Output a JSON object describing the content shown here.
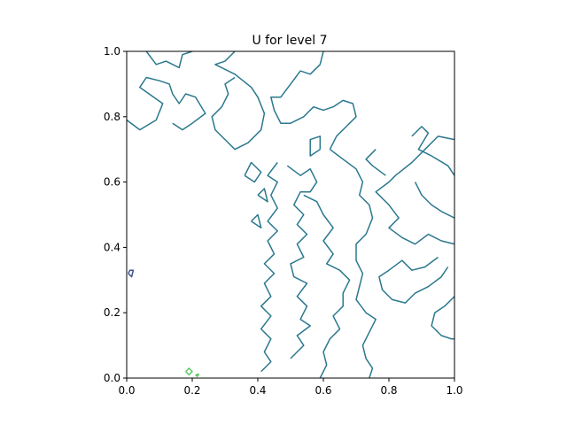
{
  "chart_data": {
    "type": "contour",
    "title": "U for level 7",
    "xlabel": "",
    "ylabel": "",
    "xlim": [
      0.0,
      1.0
    ],
    "ylim": [
      0.0,
      1.0
    ],
    "x_ticks": [
      "0.0",
      "0.2",
      "0.4",
      "0.6",
      "0.8",
      "1.0"
    ],
    "y_ticks": [
      "0.0",
      "0.2",
      "0.4",
      "0.6",
      "0.8",
      "1.0"
    ],
    "grid": false,
    "legend": "none",
    "colors": {
      "main_contour": "#2a788e",
      "low_contour": "#3b528b",
      "high_contour": "#5ec962",
      "axes": "#000000",
      "background": "#ffffff"
    },
    "contours": [
      {
        "level": "main",
        "color": "#2a788e",
        "paths": [
          [
            [
              0.06,
              1.0
            ],
            [
              0.09,
              0.96
            ],
            [
              0.12,
              0.97
            ],
            [
              0.16,
              0.95
            ],
            [
              0.17,
              0.99
            ],
            [
              0.2,
              1.0
            ]
          ],
          [
            [
              0.0,
              0.79
            ],
            [
              0.04,
              0.76
            ],
            [
              0.09,
              0.79
            ],
            [
              0.11,
              0.84
            ],
            [
              0.04,
              0.89
            ],
            [
              0.06,
              0.92
            ],
            [
              0.1,
              0.91
            ],
            [
              0.13,
              0.9
            ],
            [
              0.14,
              0.87
            ],
            [
              0.16,
              0.84
            ],
            [
              0.18,
              0.87
            ],
            [
              0.21,
              0.86
            ],
            [
              0.24,
              0.81
            ],
            [
              0.2,
              0.78
            ],
            [
              0.17,
              0.76
            ],
            [
              0.14,
              0.78
            ]
          ],
          [
            [
              0.33,
              1.0
            ],
            [
              0.3,
              0.97
            ],
            [
              0.27,
              0.96
            ],
            [
              0.33,
              0.93
            ],
            [
              0.38,
              0.89
            ],
            [
              0.4,
              0.86
            ],
            [
              0.42,
              0.81
            ],
            [
              0.41,
              0.76
            ],
            [
              0.37,
              0.72
            ],
            [
              0.33,
              0.7
            ],
            [
              0.3,
              0.73
            ],
            [
              0.27,
              0.76
            ],
            [
              0.26,
              0.8
            ],
            [
              0.29,
              0.83
            ],
            [
              0.31,
              0.87
            ],
            [
              0.3,
              0.9
            ],
            [
              0.33,
              0.92
            ]
          ],
          [
            [
              0.6,
              1.0
            ],
            [
              0.59,
              0.96
            ],
            [
              0.56,
              0.93
            ],
            [
              0.53,
              0.94
            ],
            [
              0.5,
              0.9
            ],
            [
              0.47,
              0.86
            ],
            [
              0.44,
              0.86
            ],
            [
              0.45,
              0.82
            ],
            [
              0.47,
              0.78
            ],
            [
              0.5,
              0.78
            ],
            [
              0.54,
              0.8
            ],
            [
              0.57,
              0.83
            ],
            [
              0.6,
              0.82
            ],
            [
              0.63,
              0.83
            ],
            [
              0.66,
              0.85
            ],
            [
              0.69,
              0.84
            ],
            [
              0.7,
              0.8
            ],
            [
              0.67,
              0.77
            ],
            [
              0.64,
              0.74
            ],
            [
              0.62,
              0.7
            ]
          ],
          [
            [
              0.62,
              0.7
            ],
            [
              0.66,
              0.67
            ],
            [
              0.7,
              0.64
            ],
            [
              0.72,
              0.6
            ],
            [
              0.71,
              0.56
            ],
            [
              0.74,
              0.53
            ],
            [
              0.75,
              0.49
            ],
            [
              0.73,
              0.44
            ],
            [
              0.7,
              0.41
            ],
            [
              0.7,
              0.36
            ],
            [
              0.72,
              0.32
            ],
            [
              0.71,
              0.28
            ],
            [
              0.7,
              0.24
            ],
            [
              0.73,
              0.2
            ],
            [
              0.76,
              0.18
            ],
            [
              0.74,
              0.14
            ],
            [
              0.72,
              0.1
            ],
            [
              0.73,
              0.06
            ],
            [
              0.75,
              0.03
            ],
            [
              0.74,
              0.0
            ]
          ],
          [
            [
              0.54,
              0.56
            ],
            [
              0.58,
              0.54
            ],
            [
              0.6,
              0.5
            ],
            [
              0.63,
              0.46
            ],
            [
              0.6,
              0.42
            ],
            [
              0.63,
              0.38
            ],
            [
              0.61,
              0.35
            ],
            [
              0.65,
              0.33
            ],
            [
              0.68,
              0.3
            ],
            [
              0.66,
              0.26
            ],
            [
              0.66,
              0.22
            ],
            [
              0.63,
              0.19
            ],
            [
              0.65,
              0.15
            ],
            [
              0.62,
              0.12
            ],
            [
              0.6,
              0.08
            ],
            [
              0.61,
              0.04
            ],
            [
              0.59,
              0.0
            ]
          ],
          [
            [
              0.49,
              0.65
            ],
            [
              0.53,
              0.62
            ],
            [
              0.56,
              0.64
            ],
            [
              0.58,
              0.6
            ],
            [
              0.56,
              0.57
            ],
            [
              0.53,
              0.57
            ],
            [
              0.51,
              0.53
            ],
            [
              0.54,
              0.5
            ],
            [
              0.52,
              0.47
            ],
            [
              0.55,
              0.44
            ],
            [
              0.52,
              0.41
            ],
            [
              0.54,
              0.37
            ],
            [
              0.5,
              0.35
            ],
            [
              0.51,
              0.31
            ],
            [
              0.55,
              0.29
            ],
            [
              0.52,
              0.25
            ],
            [
              0.55,
              0.22
            ],
            [
              0.53,
              0.18
            ],
            [
              0.56,
              0.16
            ],
            [
              0.52,
              0.13
            ],
            [
              0.54,
              0.1
            ],
            [
              0.5,
              0.06
            ]
          ],
          [
            [
              0.46,
              0.66
            ],
            [
              0.43,
              0.62
            ],
            [
              0.46,
              0.6
            ],
            [
              0.44,
              0.56
            ],
            [
              0.46,
              0.52
            ],
            [
              0.43,
              0.48
            ],
            [
              0.46,
              0.45
            ],
            [
              0.43,
              0.42
            ],
            [
              0.45,
              0.38
            ],
            [
              0.42,
              0.35
            ],
            [
              0.45,
              0.32
            ],
            [
              0.42,
              0.29
            ],
            [
              0.44,
              0.25
            ],
            [
              0.41,
              0.22
            ],
            [
              0.44,
              0.19
            ],
            [
              0.41,
              0.15
            ],
            [
              0.44,
              0.12
            ],
            [
              0.42,
              0.08
            ],
            [
              0.44,
              0.05
            ],
            [
              0.41,
              0.02
            ]
          ],
          [
            [
              1.0,
              0.73
            ],
            [
              0.95,
              0.74
            ],
            [
              0.91,
              0.7
            ],
            [
              0.87,
              0.66
            ],
            [
              0.82,
              0.62
            ],
            [
              0.8,
              0.6
            ],
            [
              0.76,
              0.57
            ],
            [
              0.8,
              0.53
            ],
            [
              0.83,
              0.49
            ],
            [
              0.8,
              0.46
            ],
            [
              0.84,
              0.43
            ],
            [
              0.88,
              0.41
            ],
            [
              0.92,
              0.44
            ],
            [
              0.96,
              0.42
            ],
            [
              1.0,
              0.41
            ]
          ],
          [
            [
              0.87,
              0.74
            ],
            [
              0.9,
              0.77
            ],
            [
              0.92,
              0.75
            ],
            [
              0.89,
              0.7
            ],
            [
              0.93,
              0.68
            ],
            [
              0.98,
              0.65
            ],
            [
              1.0,
              0.62
            ]
          ],
          [
            [
              0.79,
              0.62
            ],
            [
              0.75,
              0.65
            ],
            [
              0.73,
              0.67
            ],
            [
              0.76,
              0.7
            ]
          ],
          [
            [
              1.0,
              0.49
            ],
            [
              0.96,
              0.51
            ],
            [
              0.93,
              0.53
            ],
            [
              0.9,
              0.56
            ],
            [
              0.88,
              0.6
            ]
          ],
          [
            [
              0.95,
              0.37
            ],
            [
              0.91,
              0.34
            ],
            [
              0.87,
              0.33
            ],
            [
              0.84,
              0.36
            ],
            [
              0.8,
              0.33
            ],
            [
              0.77,
              0.31
            ],
            [
              0.78,
              0.27
            ],
            [
              0.81,
              0.24
            ],
            [
              0.85,
              0.23
            ],
            [
              0.88,
              0.26
            ],
            [
              0.92,
              0.28
            ],
            [
              0.96,
              0.31
            ],
            [
              0.98,
              0.34
            ]
          ],
          [
            [
              1.0,
              0.25
            ],
            [
              0.97,
              0.22
            ],
            [
              0.94,
              0.2
            ],
            [
              0.93,
              0.16
            ],
            [
              0.96,
              0.13
            ],
            [
              0.99,
              0.12
            ],
            [
              1.0,
              0.12
            ]
          ],
          [
            [
              0.59,
              0.7
            ],
            [
              0.56,
              0.68
            ],
            [
              0.56,
              0.73
            ],
            [
              0.59,
              0.74
            ],
            [
              0.59,
              0.7
            ]
          ],
          [
            [
              0.36,
              0.62
            ],
            [
              0.39,
              0.6
            ],
            [
              0.41,
              0.63
            ],
            [
              0.38,
              0.66
            ],
            [
              0.36,
              0.62
            ]
          ],
          [
            [
              0.38,
              0.48
            ],
            [
              0.41,
              0.46
            ],
            [
              0.4,
              0.5
            ],
            [
              0.38,
              0.48
            ]
          ],
          [
            [
              0.4,
              0.56
            ],
            [
              0.43,
              0.54
            ],
            [
              0.42,
              0.58
            ],
            [
              0.4,
              0.56
            ]
          ]
        ]
      },
      {
        "level": "low",
        "color": "#3b528b",
        "paths": [
          [
            [
              0.005,
              0.32
            ],
            [
              0.015,
              0.31
            ],
            [
              0.02,
              0.33
            ],
            [
              0.01,
              0.33
            ],
            [
              0.005,
              0.32
            ]
          ]
        ]
      },
      {
        "level": "high",
        "color": "#5ec962",
        "paths": [
          [
            [
              0.18,
              0.02
            ],
            [
              0.19,
              0.01
            ],
            [
              0.2,
              0.02
            ],
            [
              0.19,
              0.03
            ],
            [
              0.18,
              0.02
            ]
          ],
          [
            [
              0.21,
              0.01
            ],
            [
              0.215,
              0.005
            ],
            [
              0.22,
              0.012
            ],
            [
              0.21,
              0.01
            ]
          ]
        ]
      }
    ]
  }
}
